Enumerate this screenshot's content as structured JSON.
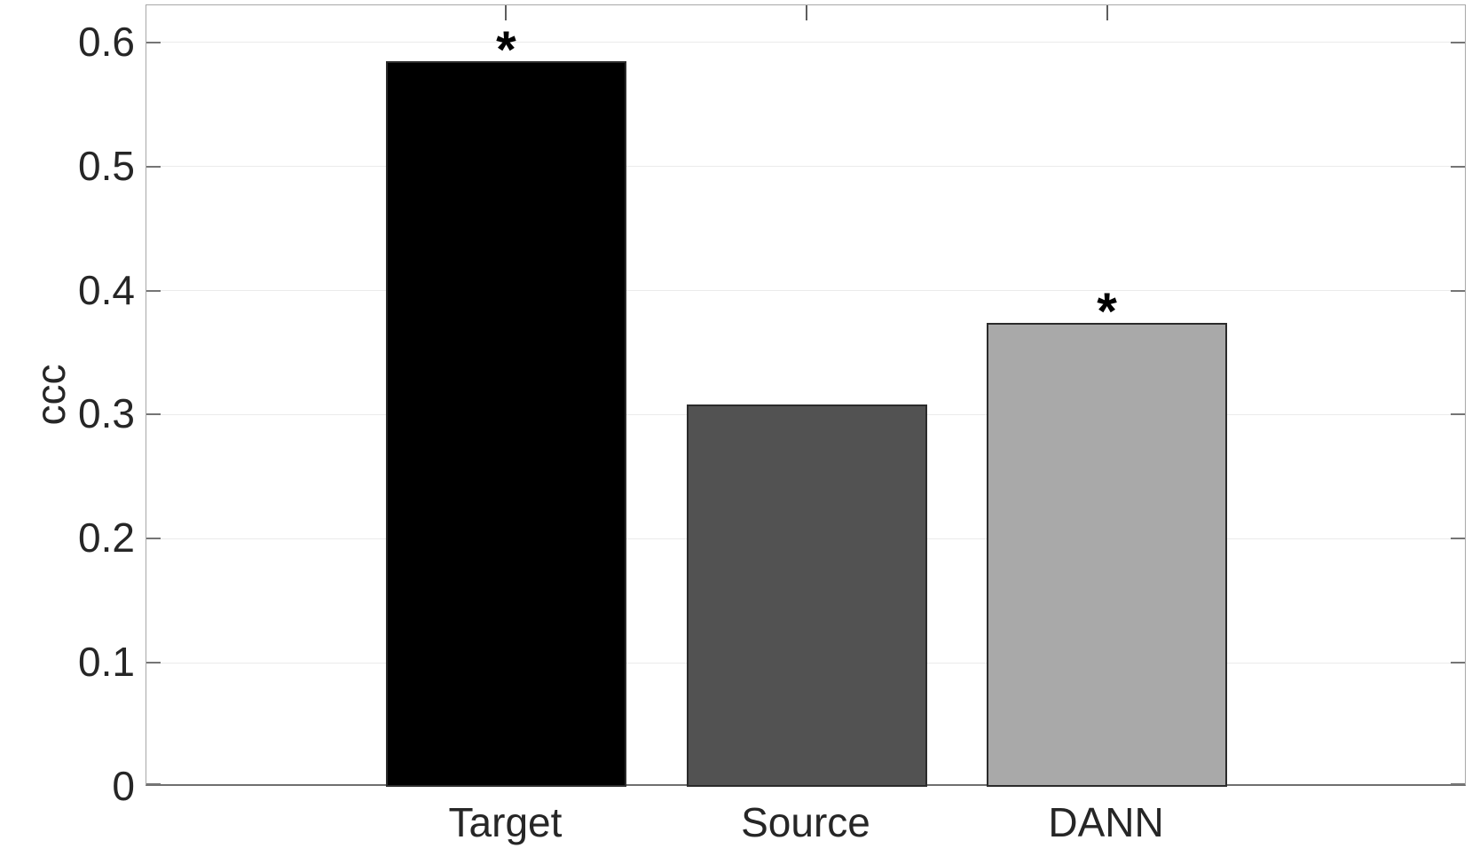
{
  "figure": {
    "background": "#ffffff"
  },
  "chart_data": {
    "type": "bar",
    "categories": [
      "Target",
      "Source",
      "DANN"
    ],
    "values": [
      0.585,
      0.308,
      0.374
    ],
    "title": "",
    "xlabel": "",
    "ylabel": "ccc",
    "ylim": [
      0,
      0.63
    ],
    "yticks": [
      0,
      0.1,
      0.2,
      0.3,
      0.4,
      0.5,
      0.6
    ],
    "ytick_labels": [
      "0",
      "0.1",
      "0.2",
      "0.3",
      "0.4",
      "0.5",
      "0.6"
    ],
    "grid": "horizontal-y",
    "legend_position": "none",
    "significance_markers": [
      true,
      false,
      true
    ],
    "marker_symbol": "*",
    "bar_colors": [
      "#000000",
      "#525252",
      "#a9a9a9"
    ],
    "bar_edge_color": "#2b2b2b",
    "grid_color": "#ebebeb",
    "axis_box_color": "#a8a8a8",
    "axis_line_color": "#6f6f6f",
    "tick_color": "#757575",
    "text_color": "#262626"
  }
}
